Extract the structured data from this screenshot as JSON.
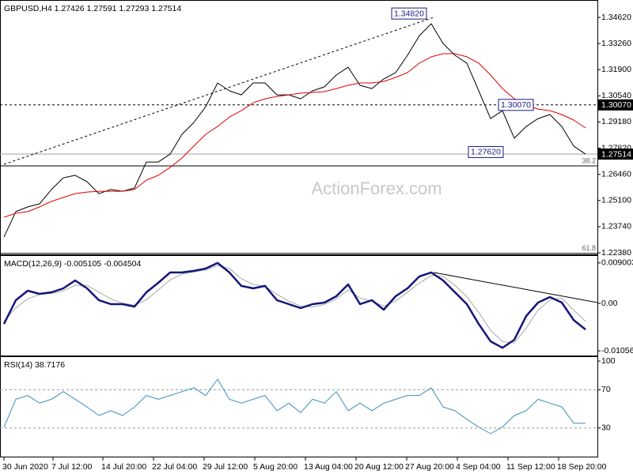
{
  "chart_data": [
    {
      "type": "line",
      "title": "GBPUSD,H4  1.27426 1.27591 1.27293 1.27514",
      "watermark": "ActionForex.com",
      "xlim": [
        -2.5,
        375
      ],
      "ylim": [
        1.223,
        1.354
      ],
      "yticks": [
        {
          "value": 1.3462,
          "label": "1.34620"
        },
        {
          "value": 1.3326,
          "label": "1.33260"
        },
        {
          "value": 1.319,
          "label": "1.31900"
        },
        {
          "value": 1.3054,
          "label": "1.30540"
        },
        {
          "value": 1.2918,
          "label": "1.29180"
        },
        {
          "value": 1.2782,
          "label": "1.27820"
        },
        {
          "value": 1.2646,
          "label": "1.26460"
        },
        {
          "value": 1.251,
          "label": "1.25100"
        },
        {
          "value": 1.2374,
          "label": "1.23740"
        },
        {
          "value": 1.2238,
          "label": "1.22380"
        }
      ],
      "x": [
        0,
        7.5,
        15,
        22.5,
        30,
        37.5,
        45,
        52.5,
        60,
        67.5,
        75,
        82.5,
        90,
        97.5,
        105,
        112.5,
        120,
        127.5,
        135,
        142.5,
        150,
        157.5,
        165,
        172.5,
        180,
        187.5,
        195,
        202.5,
        210,
        217.5,
        225,
        232.5,
        240,
        247.5,
        255,
        262.5,
        270,
        277.5,
        285,
        292.5,
        300,
        307.5,
        315,
        322.5,
        330,
        337.5,
        345,
        352.5,
        360,
        367.5
      ],
      "series": [
        {
          "color": "#000000",
          "values": [
            1.232,
            1.2452,
            1.2477,
            1.2493,
            1.2567,
            1.2628,
            1.2641,
            1.2608,
            1.2546,
            1.2567,
            1.2558,
            1.2575,
            1.271,
            1.271,
            1.2751,
            1.2854,
            1.2916,
            1.2998,
            1.3121,
            1.308,
            1.3059,
            1.3121,
            1.3121,
            1.3059,
            1.3059,
            1.3039,
            1.308,
            1.3101,
            1.3162,
            1.3203,
            1.3109,
            1.3092,
            1.3142,
            1.3175,
            1.3265,
            1.3367,
            1.3429,
            1.3326,
            1.3265,
            1.3224,
            1.308,
            1.2936,
            1.2977,
            1.2834,
            1.2895,
            1.2936,
            1.2957,
            1.2895,
            1.2793,
            1.2751
          ]
        },
        {
          "color": "#e00000",
          "values": [
            1.2423,
            1.2444,
            1.2452,
            1.2477,
            1.2505,
            1.2526,
            1.2546,
            1.2554,
            1.2558,
            1.2558,
            1.2558,
            1.2567,
            1.2616,
            1.2641,
            1.2682,
            1.2731,
            1.2793,
            1.2854,
            1.2895,
            1.2944,
            1.2977,
            1.3018,
            1.3039,
            1.3051,
            1.3059,
            1.3068,
            1.3072,
            1.3076,
            1.3092,
            1.3109,
            1.3121,
            1.3121,
            1.3129,
            1.315,
            1.3175,
            1.3224,
            1.3257,
            1.3273,
            1.3273,
            1.3257,
            1.3224,
            1.3162,
            1.3092,
            1.3039,
            1.3006,
            1.2985,
            1.2977,
            1.2957,
            1.2928,
            1.2887
          ]
        }
      ],
      "trendline": {
        "x": [
          0,
          271.5
        ],
        "values": [
          1.2698,
          1.3462
        ],
        "style": "dashed",
        "color": "#000000"
      },
      "hlines": [
        {
          "value": 1.3007,
          "label": "1.30070",
          "style": "dashed",
          "color": "#000000"
        },
        {
          "value": 1.27514,
          "label": "1.27514",
          "style": "solid",
          "color": "#a0a0a0"
        }
      ],
      "levels": [
        {
          "value": 1.269,
          "label": "38.2"
        },
        {
          "value": 1.2235,
          "label": "61.8"
        }
      ],
      "annotations": [
        {
          "value": 1.3482,
          "label": "1.34820"
        },
        {
          "value": 1.3007,
          "label": "1.30070"
        },
        {
          "value": 1.2762,
          "label": "1.27620"
        }
      ]
    },
    {
      "type": "line",
      "title": "MACD(12,26,9) -0.005105 -0.004504",
      "xlim": [
        -2.5,
        375
      ],
      "ylim": [
        -0.0116,
        0.0102
      ],
      "yticks": [
        0.009003,
        {
          "value": 0,
          "label": "0.00"
        },
        -0.010566
      ],
      "x": [
        0,
        7.5,
        15,
        22.5,
        30,
        37.5,
        45,
        52.5,
        60,
        67.5,
        75,
        82.5,
        90,
        97.5,
        105,
        112.5,
        120,
        127.5,
        135,
        142.5,
        150,
        157.5,
        165,
        172.5,
        180,
        187.5,
        195,
        202.5,
        210,
        217.5,
        225,
        232.5,
        240,
        247.5,
        255,
        262.5,
        270,
        277.5,
        285,
        292.5,
        300,
        307.5,
        315,
        322.5,
        330,
        337.5,
        345,
        352.5,
        360,
        367.5
      ],
      "series": [
        {
          "color": "#a8a8a8",
          "width": 1,
          "values": [
            -0.004,
            -0.001,
            0.001,
            0.002,
            0.0022,
            0.0028,
            0.004,
            0.004,
            0.0025,
            0.001,
            0.0,
            -0.0004,
            0.0008,
            0.003,
            0.0052,
            0.0065,
            0.007,
            0.0074,
            0.0084,
            0.0078,
            0.0055,
            0.0042,
            0.0038,
            0.002,
            0.0005,
            -0.0006,
            -0.0008,
            -0.0002,
            0.001,
            0.003,
            0.0012,
            0.0005,
            -0.0006,
            0.0005,
            0.0025,
            0.0045,
            0.0062,
            0.006,
            0.004,
            0.0015,
            -0.002,
            -0.006,
            -0.0085,
            -0.0088,
            -0.0055,
            -0.0015,
            0.0008,
            0.0012,
            -0.0015,
            -0.004
          ]
        },
        {
          "color": "#15157a",
          "width": 2.5,
          "values": [
            -0.00458,
            0.00071,
            0.00282,
            0.00212,
            0.00247,
            0.00335,
            0.00511,
            0.00335,
            0.00071,
            -0.00018,
            -0.00018,
            -0.00071,
            0.00247,
            0.00458,
            0.00688,
            0.00688,
            0.00723,
            0.00776,
            0.00899,
            0.00688,
            0.00388,
            0.00335,
            0.00388,
            0.00071,
            -0.00018,
            -0.00106,
            -0.00018,
            0.00018,
            0.00159,
            0.00423,
            -0.00018,
            0.00071,
            -0.00141,
            0.00159,
            0.00335,
            0.00599,
            0.00688,
            0.00511,
            0.00247,
            -0.00018,
            -0.00458,
            -0.00846,
            -0.00987,
            -0.00811,
            -0.00282,
            0.00018,
            0.00141,
            0.00018,
            -0.0037,
            -0.00582
          ]
        }
      ],
      "trendline": {
        "x": [
          271.5,
          375
        ],
        "values": [
          0.00688,
          0.00018
        ],
        "style": "solid",
        "color": "#000000"
      }
    },
    {
      "type": "line",
      "title": "RSI(14) 38.7176",
      "xlim": [
        -2.5,
        375
      ],
      "ylim": [
        0,
        102.5
      ],
      "yticks": [
        100,
        70,
        30
      ],
      "levels": [
        70,
        30
      ],
      "x": [
        0,
        7.5,
        15,
        22.5,
        30,
        37.5,
        45,
        52.5,
        60,
        67.5,
        75,
        82.5,
        90,
        97.5,
        105,
        112.5,
        120,
        127.5,
        135,
        142.5,
        150,
        157.5,
        165,
        172.5,
        180,
        187.5,
        195,
        202.5,
        210,
        217.5,
        225,
        232.5,
        240,
        247.5,
        255,
        262.5,
        270,
        277.5,
        285,
        292.5,
        300,
        307.5,
        315,
        322.5,
        330,
        337.5,
        345,
        352.5,
        360,
        367.5
      ],
      "series": [
        {
          "color": "#3a8fbf",
          "width": 1,
          "values": [
            30.8,
            60,
            64,
            56,
            60,
            68,
            60,
            52,
            43,
            48,
            43,
            52,
            64,
            60,
            64,
            68,
            72,
            64,
            81,
            60,
            56,
            60,
            64,
            48,
            56,
            46,
            60,
            56,
            68,
            48,
            56,
            48,
            56,
            60,
            64,
            64,
            72,
            52,
            48,
            39,
            31,
            24,
            31,
            43,
            48,
            60,
            56,
            52,
            35,
            35
          ]
        }
      ],
      "xticks": [
        {
          "value": 0,
          "label": "30 Jun 2020"
        },
        {
          "value": 31,
          "label": "7 Jul 12:00"
        },
        {
          "value": 62.5,
          "label": "14 Jul 20:00"
        },
        {
          "value": 94.5,
          "label": "22 Jul 04:00"
        },
        {
          "value": 126.5,
          "label": "29 Jul 12:00"
        },
        {
          "value": 158.5,
          "label": "5 Aug 20:00"
        },
        {
          "value": 190.5,
          "label": "13 Aug 04:00"
        },
        {
          "value": 222.5,
          "label": "20 Aug 12:00"
        },
        {
          "value": 254.5,
          "label": "27 Aug 20:00"
        },
        {
          "value": 286.5,
          "label": "4 Sep 04:00"
        },
        {
          "value": 318.5,
          "label": "11 Sep 12:00"
        },
        {
          "value": 350.5,
          "label": "18 Sep 20:00"
        }
      ]
    }
  ]
}
